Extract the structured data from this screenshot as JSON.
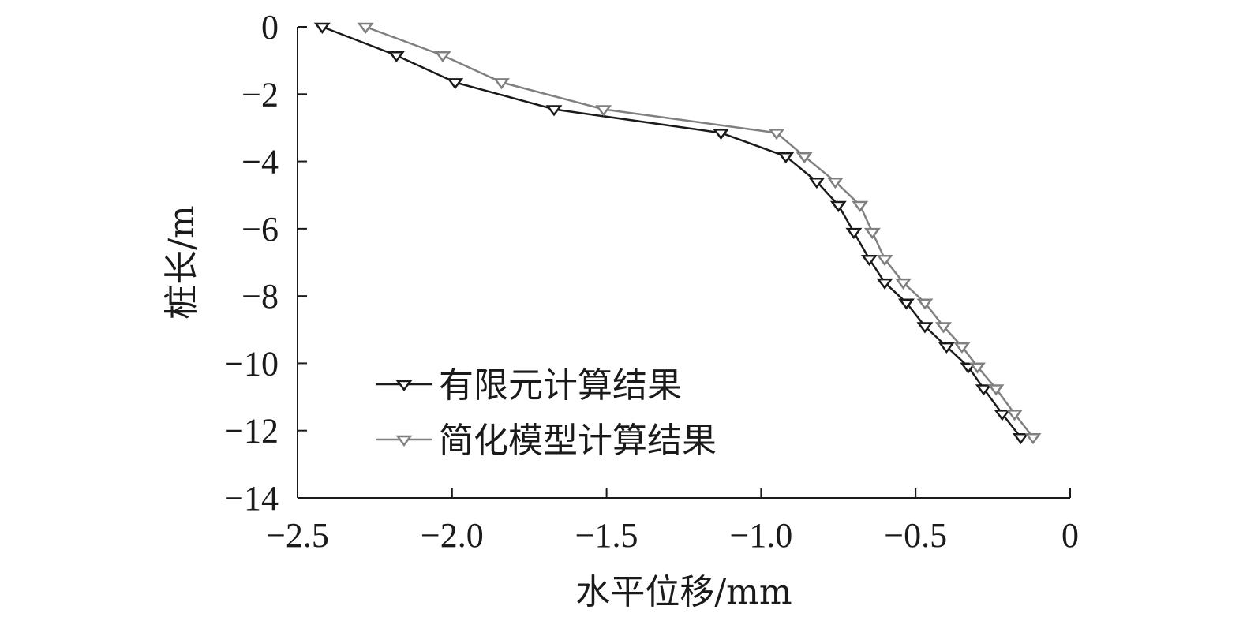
{
  "chart_data": {
    "type": "line",
    "xlabel": "水平位移/mm",
    "ylabel": "桩长/m",
    "xlim": [
      -2.5,
      0
    ],
    "ylim": [
      -14,
      0
    ],
    "xticks": [
      "−2.5",
      "−2.0",
      "−1.5",
      "−1.0",
      "−0.5",
      "0"
    ],
    "xtick_values": [
      -2.5,
      -2.0,
      -1.5,
      -1.0,
      -0.5,
      0
    ],
    "yticks": [
      "0",
      "−2",
      "−4",
      "−6",
      "−8",
      "−10",
      "−12",
      "−14"
    ],
    "ytick_values": [
      0,
      -2,
      -4,
      -6,
      -8,
      -10,
      -12,
      -14
    ],
    "grid": false,
    "legend_position": "bottom-left",
    "marker": "down-triangle-hollow",
    "series": [
      {
        "name": "有限元计算结果",
        "color": "#1a1a1a",
        "x": [
          -2.42,
          -2.18,
          -1.99,
          -1.67,
          -1.13,
          -0.92,
          -0.82,
          -0.75,
          -0.7,
          -0.65,
          -0.6,
          -0.53,
          -0.47,
          -0.4,
          -0.33,
          -0.28,
          -0.22,
          -0.16
        ],
        "y": [
          0.0,
          -0.85,
          -1.65,
          -2.45,
          -3.15,
          -3.85,
          -4.6,
          -5.3,
          -6.1,
          -6.9,
          -7.6,
          -8.2,
          -8.9,
          -9.5,
          -10.1,
          -10.75,
          -11.5,
          -12.2
        ]
      },
      {
        "name": "简化模型计算结果",
        "color": "#808080",
        "x": [
          -2.28,
          -2.03,
          -1.84,
          -1.51,
          -0.95,
          -0.86,
          -0.76,
          -0.68,
          -0.64,
          -0.6,
          -0.54,
          -0.47,
          -0.41,
          -0.35,
          -0.3,
          -0.24,
          -0.18,
          -0.12
        ],
        "y": [
          0.0,
          -0.85,
          -1.65,
          -2.45,
          -3.15,
          -3.85,
          -4.6,
          -5.3,
          -6.1,
          -6.9,
          -7.6,
          -8.2,
          -8.9,
          -9.5,
          -10.1,
          -10.75,
          -11.5,
          -12.2
        ]
      }
    ]
  }
}
